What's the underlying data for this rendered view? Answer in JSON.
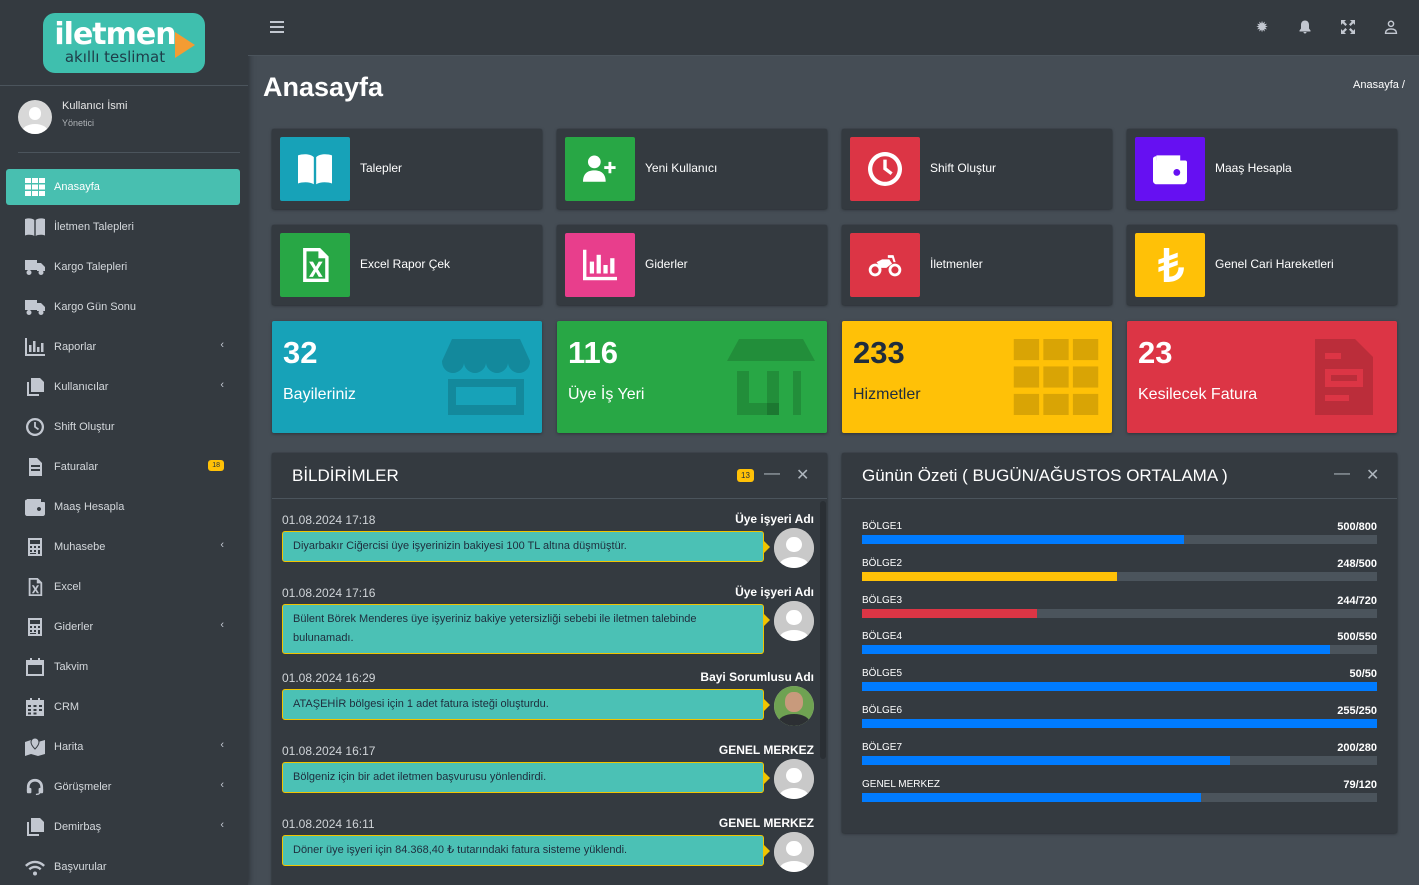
{
  "brand": {
    "logo_main": "iletmen",
    "logo_sub": "akıllı teslimat"
  },
  "user": {
    "name": "Kullanıcı İsmi",
    "role": "Yönetici"
  },
  "sidebar": {
    "items": [
      {
        "label": "Anasayfa",
        "icon": "grid-icon"
      },
      {
        "label": "İletmen Talepleri",
        "icon": "book-icon"
      },
      {
        "label": "Kargo Talepleri",
        "icon": "truck-icon"
      },
      {
        "label": "Kargo Gün Sonu",
        "icon": "truck-icon"
      },
      {
        "label": "Raporlar",
        "icon": "chart-icon",
        "chevron": "‹"
      },
      {
        "label": "Kullanıcılar",
        "icon": "copy-icon",
        "chevron": "‹"
      },
      {
        "label": "Shift Oluştur",
        "icon": "clock-icon"
      },
      {
        "label": "Faturalar",
        "icon": "file-icon",
        "badge": "18"
      },
      {
        "label": "Maaş Hesapla",
        "icon": "wallet-icon"
      },
      {
        "label": "Muhasebe",
        "icon": "calculator-icon",
        "chevron": "‹"
      },
      {
        "label": "Excel",
        "icon": "excel-icon"
      },
      {
        "label": "Giderler",
        "icon": "calculator-icon",
        "chevron": "‹"
      },
      {
        "label": "Takvim",
        "icon": "calendar-icon"
      },
      {
        "label": "CRM",
        "icon": "calendar-grid-icon"
      },
      {
        "label": "Harita",
        "icon": "map-icon",
        "chevron": "‹"
      },
      {
        "label": "Görüşmeler",
        "icon": "headset-icon",
        "chevron": "‹"
      },
      {
        "label": "Demirbaş",
        "icon": "copy-icon",
        "chevron": "‹"
      },
      {
        "label": "Başvurular",
        "icon": "wifi-icon"
      }
    ]
  },
  "topbar": {
    "menu_icon": "☰",
    "theme_icon": "✹"
  },
  "page": {
    "title": "Anasayfa",
    "breadcrumb": "Anasayfa /"
  },
  "quick": [
    {
      "label": "Talepler",
      "color": "#17a2b8",
      "icon": "book-icon"
    },
    {
      "label": "Yeni Kullanıcı",
      "color": "#28a745",
      "icon": "user-plus-icon"
    },
    {
      "label": "Shift Oluştur",
      "color": "#dc3545",
      "icon": "clock-icon"
    },
    {
      "label": "Maaş Hesapla",
      "color": "#6610f2",
      "icon": "wallet-icon"
    },
    {
      "label": "Excel Rapor Çek",
      "color": "#28a745",
      "icon": "excel-icon"
    },
    {
      "label": "Giderler",
      "color": "#e83e8c",
      "icon": "chart-icon"
    },
    {
      "label": "İletmenler",
      "color": "#dc3545",
      "icon": "motorcycle-icon"
    },
    {
      "label": "Genel Cari Hareketleri",
      "color": "#ffc107",
      "icon": "lira-icon"
    }
  ],
  "stats": [
    {
      "value": "32",
      "label": "Bayileriniz",
      "color": "#17a2b8",
      "icon": "store-icon"
    },
    {
      "value": "116",
      "label": "Üye İş Yeri",
      "color": "#28a745",
      "icon": "shop-icon"
    },
    {
      "value": "233",
      "label": "Hizmetler",
      "color": "#ffc107",
      "icon": "grid-icon"
    },
    {
      "value": "23",
      "label": "Kesilecek Fatura",
      "color": "#dc3545",
      "icon": "invoice-icon"
    }
  ],
  "notifications": {
    "title": "BİLDİRİMLER",
    "badge": "13",
    "messages": [
      {
        "time": "01.08.2024 17:18",
        "from": "Üye işyeri Adı",
        "text": "Diyarbakır Ciğercisi üye işyerinizin bakiyesi 100 TL altına düşmüştür.",
        "avatar": "generic"
      },
      {
        "time": "01.08.2024 17:16",
        "from": "Üye işyeri Adı",
        "text": "Bülent Börek Menderes üye işyeriniz bakiye yetersizliği sebebi ile iletmen talebinde bulunamadı.",
        "avatar": "generic"
      },
      {
        "time": "01.08.2024 16:29",
        "from": "Bayi Sorumlusu Adı",
        "text": "ATAŞEHİR bölgesi için 1 adet fatura isteği oluşturdu.",
        "avatar": "photo"
      },
      {
        "time": "01.08.2024 16:17",
        "from": "GENEL MERKEZ",
        "text": "Bölgeniz için bir adet iletmen başvurusu yönlendirdi.",
        "avatar": "generic"
      },
      {
        "time": "01.08.2024 16:11",
        "from": "GENEL MERKEZ",
        "text": "Döner üye işyeri için 84.368,40 ₺ tutarındaki fatura sisteme yüklendi.",
        "avatar": "generic"
      }
    ]
  },
  "summary": {
    "title": "Günün Özeti ( BUGÜN/AĞUSTOS ORTALAMA )",
    "rows": [
      {
        "name": "BÖLGE1",
        "current": 500,
        "total": 800,
        "label": "500/800",
        "color": "#007bff"
      },
      {
        "name": "BÖLGE2",
        "current": 248,
        "total": 500,
        "label": "248/500",
        "color": "#ffc107"
      },
      {
        "name": "BÖLGE3",
        "current": 244,
        "total": 720,
        "label": "244/720",
        "color": "#dc3545"
      },
      {
        "name": "BÖLGE4",
        "current": 500,
        "total": 550,
        "label": "500/550",
        "color": "#007bff"
      },
      {
        "name": "BÖLGE5",
        "current": 50,
        "total": 50,
        "label": "50/50",
        "color": "#007bff"
      },
      {
        "name": "BÖLGE6",
        "current": 255,
        "total": 250,
        "label": "255/250",
        "color": "#007bff"
      },
      {
        "name": "BÖLGE7",
        "current": 200,
        "total": 280,
        "label": "200/280",
        "color": "#007bff"
      },
      {
        "name": "GENEL MERKEZ",
        "current": 79,
        "total": 120,
        "label": "79/120",
        "color": "#007bff"
      }
    ]
  }
}
